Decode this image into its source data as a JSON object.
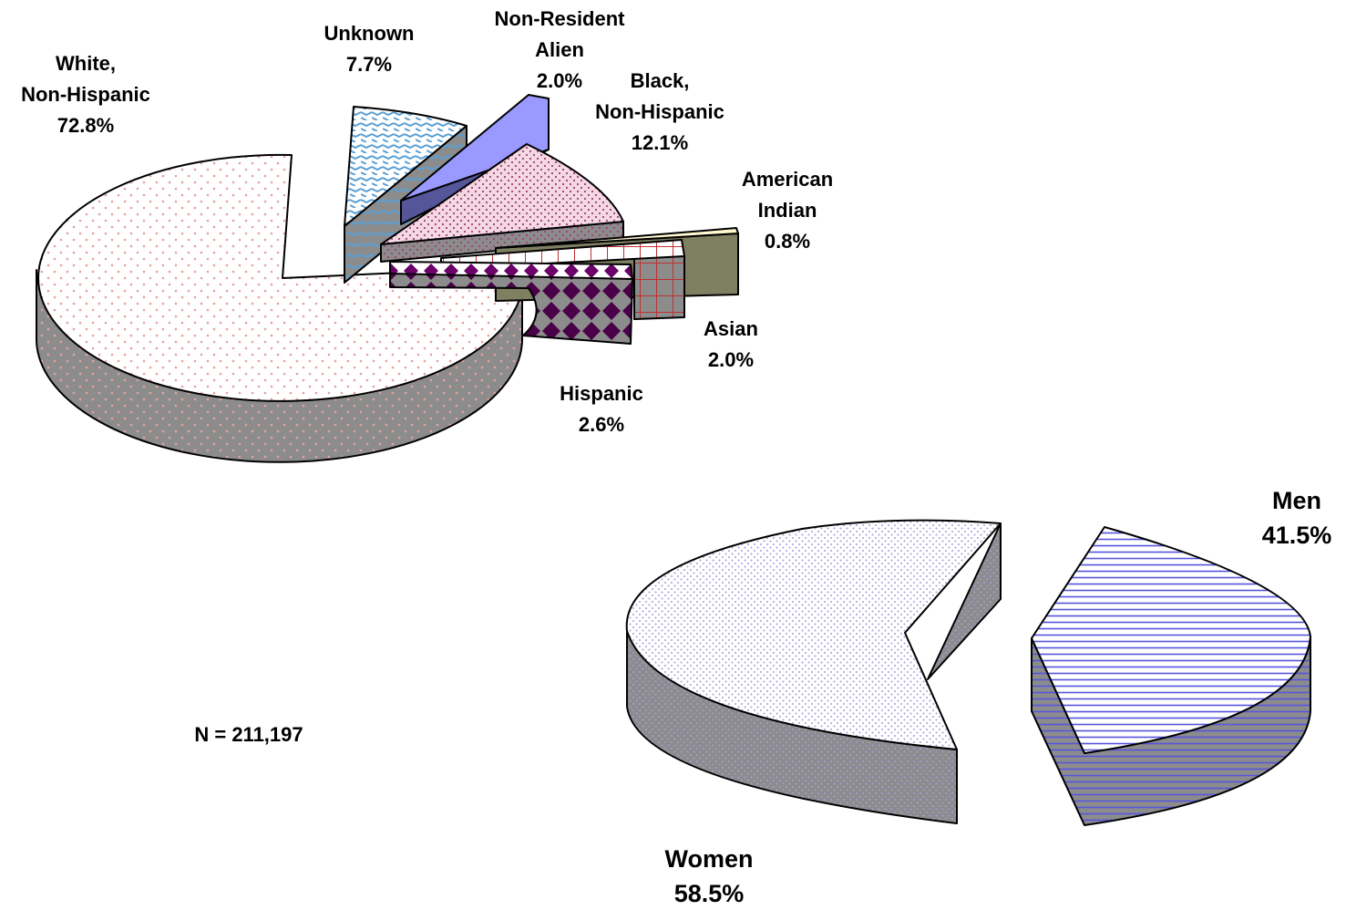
{
  "chart_data": [
    {
      "type": "pie",
      "title": "",
      "slices": [
        {
          "name": "White, Non-Hispanic",
          "label_lines": [
            "White,",
            "Non-Hispanic"
          ],
          "value": 72.8,
          "value_label": "72.8%"
        },
        {
          "name": "Unknown",
          "label_lines": [
            "Unknown"
          ],
          "value": 7.7,
          "value_label": "7.7%"
        },
        {
          "name": "Non-Resident Alien",
          "label_lines": [
            "Non-Resident",
            "Alien"
          ],
          "value": 2.0,
          "value_label": "2.0%"
        },
        {
          "name": "Black, Non-Hispanic",
          "label_lines": [
            "Black,",
            "Non-Hispanic"
          ],
          "value": 12.1,
          "value_label": "12.1%"
        },
        {
          "name": "American Indian",
          "label_lines": [
            "American",
            "Indian"
          ],
          "value": 0.8,
          "value_label": "0.8%"
        },
        {
          "name": "Asian",
          "label_lines": [
            "Asian"
          ],
          "value": 2.0,
          "value_label": "2.0%"
        },
        {
          "name": "Hispanic",
          "label_lines": [
            "Hispanic"
          ],
          "value": 2.6,
          "value_label": "2.6%"
        }
      ],
      "note": "N = 211,197"
    },
    {
      "type": "pie",
      "title": "",
      "slices": [
        {
          "name": "Women",
          "label_lines": [
            "Women"
          ],
          "value": 58.5,
          "value_label": "58.5%"
        },
        {
          "name": "Men",
          "label_lines": [
            "Men"
          ],
          "value": 41.5,
          "value_label": "41.5%"
        }
      ]
    }
  ],
  "colors": {
    "white_fill": "#ffffff",
    "white_dots": "#e8a0a0",
    "unknown_hatch": "#5a9fd4",
    "nra_fill": "#9999ff",
    "nra_side": "#555599",
    "black_fill": "#f4d8e4",
    "black_dots": "#a04070",
    "amind_fill": "#fff8d0",
    "amind_side": "#7f7f62",
    "asian_grid": "#c03030",
    "hispanic_diamond": "#4a0048",
    "side_gray": "#8c8c8c",
    "women_dots": "#a0a0e0",
    "men_lines": "#5555dd"
  }
}
